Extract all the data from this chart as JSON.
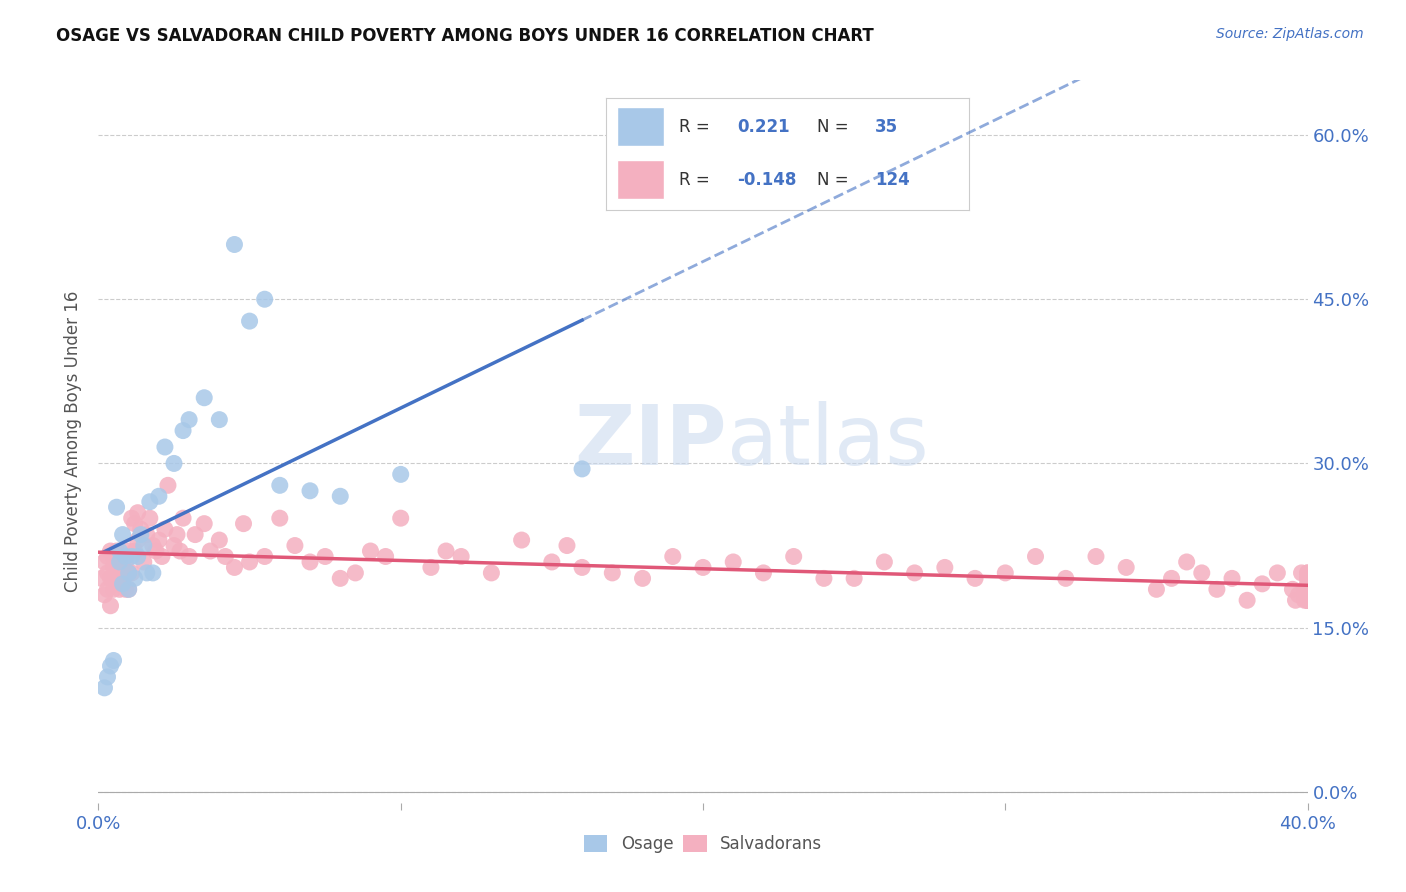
{
  "title": "OSAGE VS SALVADORAN CHILD POVERTY AMONG BOYS UNDER 16 CORRELATION CHART",
  "source": "Source: ZipAtlas.com",
  "ylabel": "Child Poverty Among Boys Under 16",
  "watermark_zip": "ZIP",
  "watermark_atlas": "atlas",
  "osage_R": 0.221,
  "osage_N": 35,
  "salvadoran_R": -0.148,
  "salvadoran_N": 124,
  "xlim": [
    0.0,
    0.4
  ],
  "ylim": [
    -0.01,
    0.65
  ],
  "x_tick_labels": [
    "0.0%",
    "40.0%"
  ],
  "x_tick_pos": [
    0.0,
    0.4
  ],
  "y_ticks": [
    0.0,
    0.15,
    0.3,
    0.45,
    0.6
  ],
  "osage_color": "#a8c8e8",
  "salvadoran_color": "#f4b0c0",
  "osage_line_color": "#4472c4",
  "salvadoran_line_color": "#e05878",
  "legend_osage_face": "#a8c8e8",
  "legend_salvadoran_face": "#f4b0c0",
  "osage_x": [
    0.002,
    0.003,
    0.004,
    0.005,
    0.006,
    0.007,
    0.007,
    0.008,
    0.008,
    0.009,
    0.01,
    0.01,
    0.011,
    0.012,
    0.013,
    0.014,
    0.015,
    0.016,
    0.017,
    0.018,
    0.02,
    0.022,
    0.025,
    0.028,
    0.03,
    0.035,
    0.04,
    0.045,
    0.05,
    0.055,
    0.06,
    0.07,
    0.08,
    0.1,
    0.16
  ],
  "osage_y": [
    0.095,
    0.105,
    0.115,
    0.12,
    0.26,
    0.21,
    0.22,
    0.235,
    0.19,
    0.215,
    0.2,
    0.185,
    0.215,
    0.195,
    0.215,
    0.235,
    0.225,
    0.2,
    0.265,
    0.2,
    0.27,
    0.315,
    0.3,
    0.33,
    0.34,
    0.36,
    0.34,
    0.5,
    0.43,
    0.45,
    0.28,
    0.275,
    0.27,
    0.29,
    0.295
  ],
  "salvadoran_x": [
    0.001,
    0.002,
    0.002,
    0.003,
    0.003,
    0.003,
    0.004,
    0.004,
    0.004,
    0.005,
    0.005,
    0.005,
    0.006,
    0.006,
    0.006,
    0.007,
    0.007,
    0.007,
    0.008,
    0.008,
    0.009,
    0.009,
    0.01,
    0.01,
    0.01,
    0.011,
    0.011,
    0.012,
    0.012,
    0.013,
    0.013,
    0.014,
    0.015,
    0.016,
    0.017,
    0.018,
    0.019,
    0.02,
    0.021,
    0.022,
    0.023,
    0.025,
    0.026,
    0.027,
    0.028,
    0.03,
    0.032,
    0.035,
    0.037,
    0.04,
    0.042,
    0.045,
    0.048,
    0.05,
    0.055,
    0.06,
    0.065,
    0.07,
    0.075,
    0.08,
    0.085,
    0.09,
    0.095,
    0.1,
    0.11,
    0.115,
    0.12,
    0.13,
    0.14,
    0.15,
    0.155,
    0.16,
    0.17,
    0.18,
    0.19,
    0.2,
    0.21,
    0.22,
    0.23,
    0.24,
    0.25,
    0.26,
    0.27,
    0.28,
    0.29,
    0.3,
    0.31,
    0.32,
    0.33,
    0.34,
    0.35,
    0.355,
    0.36,
    0.365,
    0.37,
    0.375,
    0.38,
    0.385,
    0.39,
    0.395,
    0.396,
    0.397,
    0.398,
    0.399,
    0.399,
    0.4,
    0.4,
    0.4,
    0.4,
    0.4,
    0.4,
    0.4,
    0.4,
    0.4,
    0.4,
    0.4,
    0.4,
    0.4,
    0.4,
    0.4,
    0.4,
    0.4,
    0.4,
    0.4
  ],
  "salvadoran_y": [
    0.195,
    0.18,
    0.21,
    0.185,
    0.2,
    0.215,
    0.17,
    0.195,
    0.22,
    0.185,
    0.205,
    0.215,
    0.19,
    0.2,
    0.22,
    0.185,
    0.2,
    0.215,
    0.19,
    0.205,
    0.185,
    0.21,
    0.2,
    0.22,
    0.185,
    0.2,
    0.25,
    0.22,
    0.245,
    0.23,
    0.255,
    0.24,
    0.21,
    0.235,
    0.25,
    0.225,
    0.22,
    0.23,
    0.215,
    0.24,
    0.28,
    0.225,
    0.235,
    0.22,
    0.25,
    0.215,
    0.235,
    0.245,
    0.22,
    0.23,
    0.215,
    0.205,
    0.245,
    0.21,
    0.215,
    0.25,
    0.225,
    0.21,
    0.215,
    0.195,
    0.2,
    0.22,
    0.215,
    0.25,
    0.205,
    0.22,
    0.215,
    0.2,
    0.23,
    0.21,
    0.225,
    0.205,
    0.2,
    0.195,
    0.215,
    0.205,
    0.21,
    0.2,
    0.215,
    0.195,
    0.195,
    0.21,
    0.2,
    0.205,
    0.195,
    0.2,
    0.215,
    0.195,
    0.215,
    0.205,
    0.185,
    0.195,
    0.21,
    0.2,
    0.185,
    0.195,
    0.175,
    0.19,
    0.2,
    0.185,
    0.175,
    0.18,
    0.2,
    0.185,
    0.175,
    0.195,
    0.18,
    0.2,
    0.185,
    0.175,
    0.19,
    0.18,
    0.175,
    0.185,
    0.2,
    0.175,
    0.185,
    0.195,
    0.175,
    0.185,
    0.175,
    0.18,
    0.185,
    0.18
  ]
}
